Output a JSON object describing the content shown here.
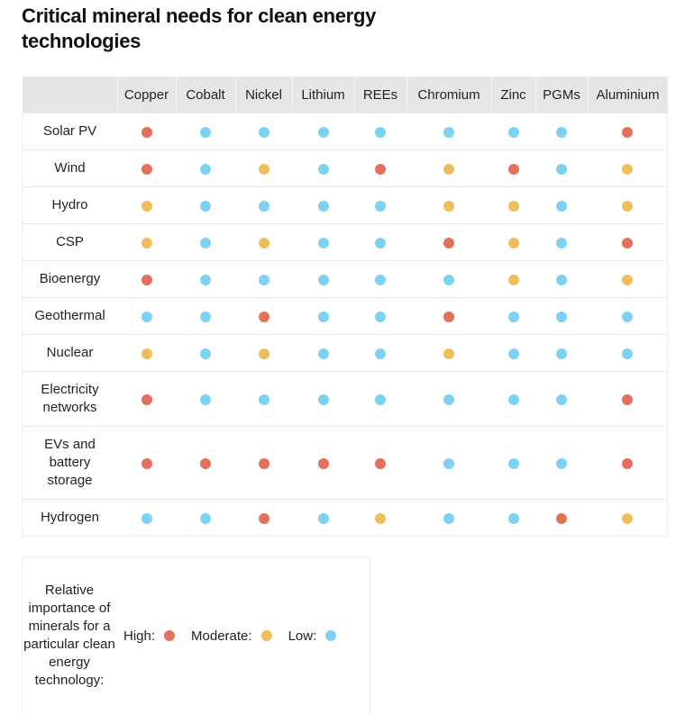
{
  "title": "Critical mineral needs for clean energy technologies",
  "colors": {
    "high": "#e4705a",
    "moderate": "#efbd5c",
    "low": "#7dd1f2"
  },
  "legend": {
    "title": "Relative importance of minerals for a particular clean energy technology:",
    "high_label": "High:",
    "moderate_label": "Moderate:",
    "low_label": "Low:"
  },
  "chart_data": {
    "type": "table",
    "title": "Critical mineral needs for clean energy technologies",
    "columns": [
      "Copper",
      "Cobalt",
      "Nickel",
      "Lithium",
      "REEs",
      "Chromium",
      "Zinc",
      "PGMs",
      "Aluminium"
    ],
    "levels": [
      "High",
      "Moderate",
      "Low"
    ],
    "rows": [
      {
        "label": "Solar PV",
        "values": [
          "High",
          "Low",
          "Low",
          "Low",
          "Low",
          "Low",
          "Low",
          "Low",
          "High"
        ]
      },
      {
        "label": "Wind",
        "values": [
          "High",
          "Low",
          "Moderate",
          "Low",
          "High",
          "Moderate",
          "High",
          "Low",
          "Moderate"
        ]
      },
      {
        "label": "Hydro",
        "values": [
          "Moderate",
          "Low",
          "Low",
          "Low",
          "Low",
          "Moderate",
          "Moderate",
          "Low",
          "Moderate"
        ]
      },
      {
        "label": "CSP",
        "values": [
          "Moderate",
          "Low",
          "Moderate",
          "Low",
          "Low",
          "High",
          "Moderate",
          "Low",
          "High"
        ]
      },
      {
        "label": "Bioenergy",
        "values": [
          "High",
          "Low",
          "Low",
          "Low",
          "Low",
          "Low",
          "Moderate",
          "Low",
          "Moderate"
        ]
      },
      {
        "label": "Geothermal",
        "values": [
          "Low",
          "Low",
          "High",
          "Low",
          "Low",
          "High",
          "Low",
          "Low",
          "Low"
        ]
      },
      {
        "label": "Nuclear",
        "values": [
          "Moderate",
          "Low",
          "Moderate",
          "Low",
          "Low",
          "Moderate",
          "Low",
          "Low",
          "Low"
        ]
      },
      {
        "label": "Electricity networks",
        "values": [
          "High",
          "Low",
          "Low",
          "Low",
          "Low",
          "Low",
          "Low",
          "Low",
          "High"
        ]
      },
      {
        "label": "EVs and battery storage",
        "values": [
          "High",
          "High",
          "High",
          "High",
          "High",
          "Low",
          "Low",
          "Low",
          "High"
        ]
      },
      {
        "label": "Hydrogen",
        "values": [
          "Low",
          "Low",
          "High",
          "Low",
          "Moderate",
          "Low",
          "Low",
          "High",
          "Moderate"
        ]
      }
    ]
  }
}
